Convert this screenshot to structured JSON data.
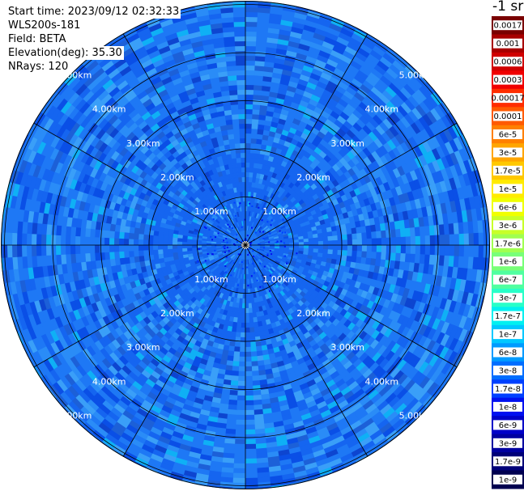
{
  "info": {
    "start_time": "Start time: 2023/09/12 02:32:33",
    "instrument": "WLS200s-181",
    "field": "Field: BETA",
    "elevation": "Elevation(deg): 35.30",
    "nrays": "NRays: 120"
  },
  "unit_label": "-1 sr",
  "range_rings": {
    "labels": [
      "1.00km",
      "2.00km",
      "3.00km",
      "4.00km",
      "5.00km"
    ],
    "radii_km": [
      1,
      2,
      3,
      4,
      5
    ]
  },
  "colorbar": {
    "entries": [
      {
        "label": "0.0017",
        "color": "#7a0000"
      },
      {
        "label": "0.001",
        "color": "#a80000"
      },
      {
        "label": "0.0006",
        "color": "#d00000"
      },
      {
        "label": "0.0003",
        "color": "#f00000"
      },
      {
        "label": "0.00017",
        "color": "#ff2d00"
      },
      {
        "label": "0.0001",
        "color": "#ff5a00"
      },
      {
        "label": "6e-5",
        "color": "#ff8000"
      },
      {
        "label": "3e-5",
        "color": "#ffa500"
      },
      {
        "label": "1.7e-5",
        "color": "#ffc800"
      },
      {
        "label": "1e-5",
        "color": "#ffeb00"
      },
      {
        "label": "6e-6",
        "color": "#f0ff00"
      },
      {
        "label": "3e-6",
        "color": "#c8ff28"
      },
      {
        "label": "1.7e-6",
        "color": "#a0ff50"
      },
      {
        "label": "1e-6",
        "color": "#78ff78"
      },
      {
        "label": "6e-7",
        "color": "#50ffa0"
      },
      {
        "label": "3e-7",
        "color": "#28ffc8"
      },
      {
        "label": "1.7e-7",
        "color": "#00f0f0"
      },
      {
        "label": "1e-7",
        "color": "#00c8ff"
      },
      {
        "label": "6e-8",
        "color": "#009bff"
      },
      {
        "label": "3e-8",
        "color": "#006eff"
      },
      {
        "label": "1.7e-8",
        "color": "#0040ff"
      },
      {
        "label": "1e-8",
        "color": "#0010f0"
      },
      {
        "label": "6e-9",
        "color": "#0000c8"
      },
      {
        "label": "3e-9",
        "color": "#0000a0"
      },
      {
        "label": "1.7e-9",
        "color": "#000078"
      },
      {
        "label": "1e-9",
        "color": "#000050"
      }
    ]
  },
  "colors": {
    "background": "#ffffff",
    "grid_lines": "#000000",
    "field_palette": [
      "#0a4fe6",
      "#1565f0",
      "#1e78f5",
      "#2a8cf7",
      "#3a9ff8",
      "#0fb0f5",
      "#1c60d8",
      "#0d45d0"
    ]
  }
}
